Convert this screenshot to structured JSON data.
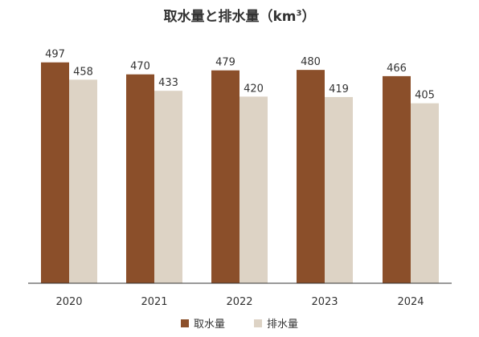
{
  "title": {
    "main": "取水量と排水量",
    "unit_prefix": "（km",
    "unit_sup": "3",
    "unit_suffix": "）"
  },
  "colors": {
    "intake": "#8B4F2A",
    "discharge": "#DDD3C5",
    "axis": "#333333"
  },
  "chart_data": {
    "type": "bar",
    "categories": [
      "2020",
      "2021",
      "2022",
      "2023",
      "2024"
    ],
    "series": [
      {
        "name": "取水量",
        "values": [
          497,
          470,
          479,
          480,
          466
        ]
      },
      {
        "name": "排水量",
        "values": [
          458,
          433,
          420,
          419,
          405
        ]
      }
    ],
    "ylim": [
      0,
      520
    ],
    "grid": false,
    "legend_position": "bottom-center"
  }
}
